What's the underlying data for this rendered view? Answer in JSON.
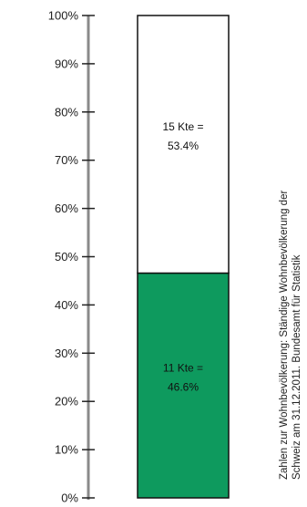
{
  "chart_data": {
    "type": "bar",
    "stacked": true,
    "ylim": [
      0,
      100
    ],
    "y_ticks": [
      "0%",
      "10%",
      "20%",
      "30%",
      "40%",
      "50%",
      "60%",
      "70%",
      "80%",
      "90%",
      "100%"
    ],
    "y_tick_values": [
      0,
      10,
      20,
      30,
      40,
      50,
      60,
      70,
      80,
      90,
      100
    ],
    "segments": [
      {
        "value": 46.6,
        "color": "#0e9a5e",
        "label_line1": "11 Kte =",
        "label_line2": "46.6%"
      },
      {
        "value": 53.4,
        "color": "#ffffff",
        "label_line1": "15 Kte =",
        "label_line2": "53.4%"
      }
    ],
    "source_note": {
      "line1": "Zahlen zur Wohnbevölkerung: Ständige Wohnbevölkerung der",
      "line2": "Schweiz am 31.12.2011. Bundesamt für Statistik"
    },
    "colors": {
      "axis": "#8a8a8a",
      "bar_outline": "#111111"
    },
    "grid": false
  }
}
